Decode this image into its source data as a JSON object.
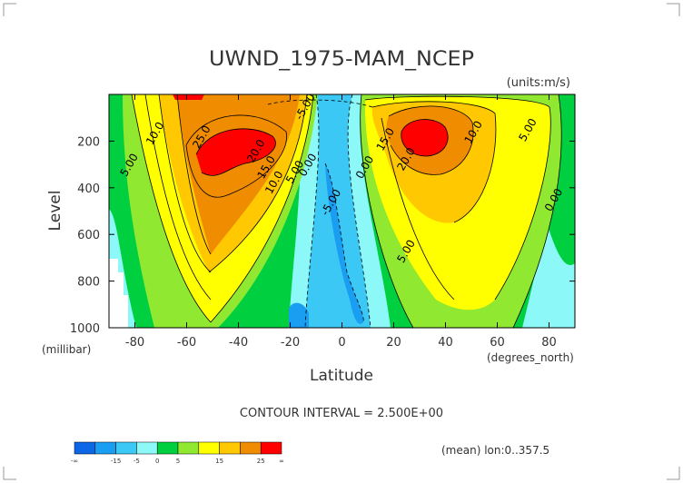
{
  "chart_data": {
    "type": "contour",
    "title": "UWND_1975-MAM_NCEP",
    "units": "(units:m/s)",
    "xlabel": "Latitude",
    "ylabel": "Level",
    "x_units": "(degrees_north)",
    "y_units": "(millibar)",
    "xlim": [
      -90,
      90
    ],
    "ylim": [
      1000,
      0
    ],
    "x_ticks": [
      "-80",
      "-60",
      "-40",
      "-20",
      "0",
      "20",
      "40",
      "60",
      "80"
    ],
    "x_tick_values": [
      -80,
      -60,
      -40,
      -20,
      0,
      20,
      40,
      60,
      80
    ],
    "y_ticks": [
      "200",
      "400",
      "600",
      "800",
      "1000"
    ],
    "y_tick_values": [
      200,
      400,
      600,
      800,
      1000
    ],
    "contour_interval_text": "CONTOUR INTERVAL = 2.500E+00",
    "footnote": "(mean) lon:0..357.5",
    "contour_labels": [
      {
        "text": "25.0",
        "lat": -53,
        "lev": 190
      },
      {
        "text": "20.0",
        "lat": -32,
        "lev": 250
      },
      {
        "text": "15.0",
        "lat": -28,
        "lev": 320
      },
      {
        "text": "10.0",
        "lat": -25,
        "lev": 385
      },
      {
        "text": "10.0",
        "lat": -71,
        "lev": 175
      },
      {
        "text": "5.00",
        "lat": -81,
        "lev": 310
      },
      {
        "text": "5.00",
        "lat": -17,
        "lev": 340
      },
      {
        "text": "0.00",
        "lat": -12,
        "lev": 310
      },
      {
        "text": "-5.00",
        "lat": -13,
        "lev": 60
      },
      {
        "text": "-5.00",
        "lat": -3,
        "lev": 470
      },
      {
        "text": "0.00",
        "lat": 10,
        "lev": 320
      },
      {
        "text": "15.0",
        "lat": 18,
        "lev": 200
      },
      {
        "text": "20.0",
        "lat": 26,
        "lev": 285
      },
      {
        "text": "10.0",
        "lat": 52,
        "lev": 170
      },
      {
        "text": "5.00",
        "lat": 73,
        "lev": 160
      },
      {
        "text": "5.00",
        "lat": 26,
        "lev": 680
      },
      {
        "text": "0.00",
        "lat": 83,
        "lev": 460
      }
    ],
    "colorbar": {
      "colors": [
        "#0d66e6",
        "#1a9ef2",
        "#3cc8f4",
        "#8df8f8",
        "#00d040",
        "#90e830",
        "#ffff00",
        "#ffc800",
        "#f08c00",
        "#ff0000"
      ],
      "labels": [
        "-∞",
        "-15",
        "-5",
        "0",
        "5",
        "15",
        "25",
        "∞"
      ]
    }
  }
}
